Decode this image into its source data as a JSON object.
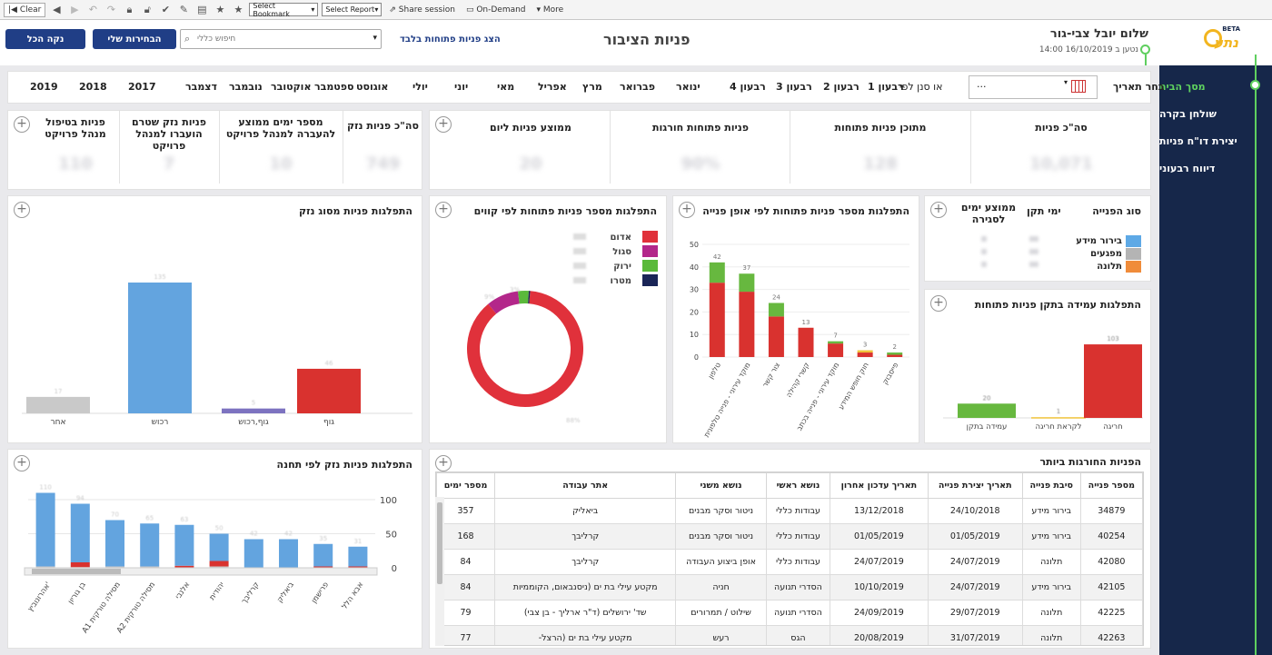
{
  "toolbar": {
    "clear": "Clear",
    "bookmark": "Select Bookmark",
    "report": "Select Report",
    "share": "Share session",
    "ondemand": "On-Demand",
    "more": "More"
  },
  "header": {
    "page_title": "פניות הציבור",
    "user_name": "שלום יובל צבי-גור",
    "loaded_at": "נטען ב 16/10/2019 14:00",
    "show_open_link": "הצג פניות פתוחות בלבד",
    "search_placeholder": "חיפוש כללי",
    "my_selections": "הבחירות שלי",
    "clear_all": "נקה הכל",
    "logo_text": "נתע",
    "logo_beta": "BETA"
  },
  "sidebar": {
    "items": [
      "מסך הבית",
      "שולחן בקרה",
      "יצירת דו\"ח פניות",
      "דיווח רבעוני"
    ]
  },
  "dates": {
    "select_label": "בחר תאריך",
    "filter_by": "או סנן לפי",
    "input_value": "...",
    "items": [
      "רבעון 1",
      "רבעון 2",
      "רבעון 3",
      "רבעון 4",
      "ינואר",
      "פברואר",
      "מרץ",
      "אפריל",
      "מאי",
      "יוני",
      "יולי",
      "אוגוסט",
      "ספטמבר",
      "אוקטובר",
      "נובמבר",
      "דצמבר",
      "2017",
      "2018",
      "2019"
    ]
  },
  "kpi_left": {
    "labels": [
      "סה\"כ פניות נזק",
      "מספר ימים ממוצע להעברה למנהל פרויקט",
      "פניות נזק שטרם הועברו למנהל פרויקט",
      "פניות בטיפול מנהל פרויקט"
    ],
    "values": [
      "749",
      "10",
      "7",
      "110"
    ]
  },
  "kpi_right": {
    "labels": [
      "סה\"כ פניות",
      "מתוכן פניות פתוחות",
      "פניות פתוחות חורגות",
      "ממוצע פניות ליום"
    ],
    "values": [
      "10,071",
      "128",
      "90%",
      "20"
    ]
  },
  "type_card": {
    "headers": [
      "סוג הפנייה",
      "ימי תקן",
      "ממוצע ימים לסגירה"
    ],
    "rows": [
      {
        "label": "בירור מידע",
        "color": "#5ea9e6"
      },
      {
        "label": "מפגעים",
        "color": "#b4b4b4"
      },
      {
        "label": "תלונה",
        "color": "#f08c3a"
      }
    ]
  },
  "titles": {
    "damage_type": "התפלגות פניות מסוג נזק",
    "lines": "התפלגות מספר פניות פתוחות לפי קווים",
    "way": "התפלגות מספר פניות פתוחות לפי אופן פנייה",
    "standard": "התפלגות עמידה בתקן פניות פתוחות",
    "station": "התפלגות פניות נזק לפי תחנה",
    "exceeding": "הפניות החורגות ביותר"
  },
  "chart_data": [
    {
      "type": "bar",
      "title": "התפלגות פניות מסוג נזק",
      "categories": [
        "אחר",
        "רכוש",
        "גוף,רכוש",
        "גוף"
      ],
      "colors": [
        "#c9c9c9",
        "#63a4df",
        "#7d73c0",
        "#d9322f"
      ],
      "values": [
        17,
        135,
        5,
        46
      ],
      "ylim": [
        0,
        150
      ]
    },
    {
      "type": "pie",
      "title": "התפלגות מספר פניות פתוחות לפי קווים",
      "legend": [
        {
          "label": "אדום",
          "color": "#e0313b"
        },
        {
          "label": "סגול",
          "color": "#b3278a"
        },
        {
          "label": "ירוק",
          "color": "#5ab93b"
        },
        {
          "label": "מטרו",
          "color": "#1a2557"
        }
      ],
      "values": [
        88,
        9,
        3,
        0.5
      ]
    },
    {
      "type": "bar",
      "title": "התפלגות מספר פניות פתוחות לפי אופן פנייה",
      "categories": [
        "טלפון",
        "מוקד עירוני - פנייה טלפונית",
        "צור קשר",
        "קשרי קהילה",
        "מוקד עירוני - פנייה בכתב",
        "חוק חופש המידע",
        "פייסבוק"
      ],
      "series": [
        {
          "name": "red",
          "color": "#d9322f",
          "values": [
            33,
            29,
            18,
            13,
            6,
            2,
            1
          ]
        },
        {
          "name": "green",
          "color": "#67b83f",
          "values": [
            9,
            8,
            6,
            0,
            1,
            0,
            1
          ]
        },
        {
          "name": "yellow",
          "color": "#f0c33a",
          "values": [
            0,
            0,
            0,
            0,
            0,
            1,
            0
          ]
        }
      ],
      "totals": [
        42,
        37,
        24,
        13,
        7,
        3,
        2
      ],
      "ylim": [
        0,
        50
      ],
      "yticks": [
        0,
        10,
        20,
        30,
        40,
        50
      ]
    },
    {
      "type": "bar",
      "title": "התפלגות עמידה בתקן פניות פתוחות",
      "categories": [
        "עמידה בתקן",
        "לקראת חריגה",
        "חריגה"
      ],
      "colors": [
        "#67b83f",
        "#f0c33a",
        "#d9322f"
      ],
      "values": [
        20,
        1,
        103
      ],
      "ylim": [
        0,
        140
      ]
    },
    {
      "type": "bar",
      "title": "התפלגות פניות נזק לפי תחנה",
      "categories": [
        "אהרונוביץ'",
        "בן גוריון",
        "A1 מסילה טורקית",
        "A2 מסילה טורקית",
        "אלנבי",
        "יהודית",
        "קרליבך",
        "ביאליק",
        "פרישמן",
        "אבא הלל"
      ],
      "series": [
        {
          "name": "blue",
          "color": "#63a4df",
          "values": [
            108,
            86,
            68,
            63,
            60,
            40,
            42,
            42,
            33,
            29
          ]
        },
        {
          "name": "red",
          "color": "#d9322f",
          "values": [
            0,
            7,
            0,
            0,
            3,
            8,
            0,
            0,
            2,
            2
          ]
        },
        {
          "name": "gray",
          "color": "#c9c9c9",
          "values": [
            2,
            1,
            2,
            2,
            0,
            2,
            0,
            0,
            0,
            0
          ]
        }
      ],
      "totals": [
        110,
        94,
        70,
        65,
        63,
        50,
        42,
        42,
        35,
        31
      ],
      "ylim": [
        0,
        100
      ],
      "yticks": [
        0,
        50,
        100
      ]
    }
  ],
  "table": {
    "headers": [
      "מספר פנייה",
      "סיבת פנייה",
      "תאריך יצירת פנייה",
      "תאריך עדכון אחרון",
      "נושא ראשי",
      "נושא משני",
      "אתר עבודה",
      "מספר ימים"
    ],
    "rows": [
      [
        "34879",
        "בירור מידע",
        "24/10/2018",
        "13/12/2018",
        "עבודות כללי",
        "ניטור וסקר מבנים",
        "ביאליק",
        "357"
      ],
      [
        "40254",
        "בירור מידע",
        "01/05/2019",
        "01/05/2019",
        "עבודות כללי",
        "ניטור וסקר מבנים",
        "קרליבך",
        "168"
      ],
      [
        "42080",
        "תלונה",
        "24/07/2019",
        "24/07/2019",
        "עבודות כללי",
        "אופן ביצוע העבודה",
        "קרליבך",
        "84"
      ],
      [
        "42105",
        "בירור מידע",
        "24/07/2019",
        "10/10/2019",
        "הסדרי תנועה",
        "חניה",
        "מקטע עילי בת ים (ניסנבאום, הקוממיות",
        "84"
      ],
      [
        "42225",
        "תלונה",
        "29/07/2019",
        "24/09/2019",
        "הסדרי תנועה",
        "שילוט / תמרורים",
        "שד' ירושלים (ד\"ר ארליך - בן צבי)",
        "79"
      ],
      [
        "42263",
        "תלונה",
        "31/07/2019",
        "20/08/2019",
        "הגס",
        "רעש",
        "מקטע עילי בת ים (הרצל-",
        "77"
      ]
    ]
  }
}
